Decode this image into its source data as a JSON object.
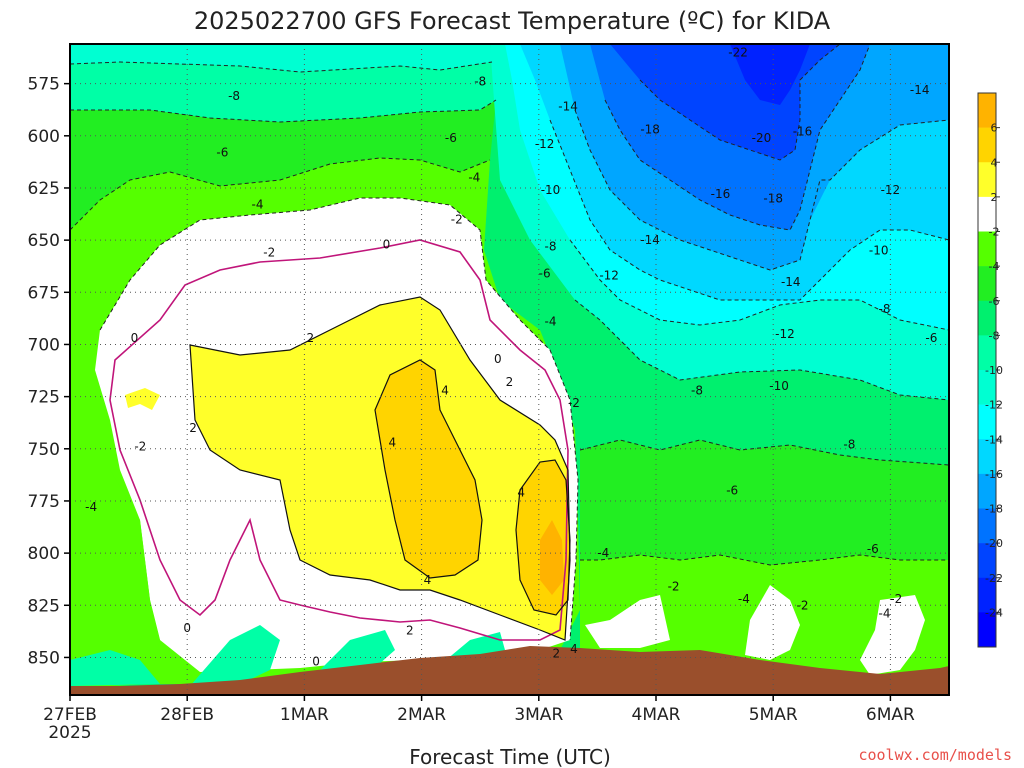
{
  "chart_data": {
    "type": "heatmap",
    "title": "2025022700 GFS Forecast Temperature (ºC) for KIDA",
    "xlabel": "Forecast Time (UTC)",
    "ylabel": "",
    "x_ticks": [
      "27FEB",
      "28FEB",
      "1MAR",
      "2MAR",
      "3MAR",
      "4MAR",
      "5MAR",
      "6MAR"
    ],
    "x_tick_sub": "2025",
    "x_range_days": [
      0,
      7.5
    ],
    "y_ticks": [
      575,
      600,
      625,
      650,
      675,
      700,
      725,
      750,
      775,
      800,
      825,
      850
    ],
    "y_range_hpa": [
      556,
      868
    ],
    "colorbar_ticks": [
      6,
      4,
      2,
      -2,
      -4,
      -6,
      -8,
      -10,
      -12,
      -14,
      -16,
      -18,
      -20,
      -22,
      -24
    ],
    "colorbar_colors": [
      "#ffb300",
      "#ffd400",
      "#ffff2a",
      "#ffffff",
      "#55ff00",
      "#22ee22",
      "#00f06e",
      "#00ffa6",
      "#00ffd2",
      "#00ffff",
      "#00d8ff",
      "#00a6ff",
      "#0073ff",
      "#0044ff",
      "#0022ff",
      "#0000ff"
    ],
    "contour_labels": [
      {
        "t": 1.4,
        "p": 581,
        "v": "-8"
      },
      {
        "t": 3.5,
        "p": 574,
        "v": "-8"
      },
      {
        "t": 1.3,
        "p": 608,
        "v": "-6"
      },
      {
        "t": 3.25,
        "p": 601,
        "v": "-6"
      },
      {
        "t": 1.6,
        "p": 633,
        "v": "-4"
      },
      {
        "t": 3.45,
        "p": 620,
        "v": "-4"
      },
      {
        "t": 1.7,
        "p": 656,
        "v": "-2"
      },
      {
        "t": 3.3,
        "p": 640,
        "v": "-2"
      },
      {
        "t": 2.7,
        "p": 652,
        "v": "0"
      },
      {
        "t": 0.55,
        "p": 697,
        "v": "0"
      },
      {
        "t": 0.6,
        "p": 749,
        "v": "-2"
      },
      {
        "t": 0.18,
        "p": 778,
        "v": "-4"
      },
      {
        "t": 1.05,
        "p": 740,
        "v": "2"
      },
      {
        "t": 2.05,
        "p": 697,
        "v": "2"
      },
      {
        "t": 3.75,
        "p": 718,
        "v": "2"
      },
      {
        "t": 3.65,
        "p": 707,
        "v": "0"
      },
      {
        "t": 3.2,
        "p": 722,
        "v": "4"
      },
      {
        "t": 2.75,
        "p": 747,
        "v": "4"
      },
      {
        "t": 3.05,
        "p": 813,
        "v": "4"
      },
      {
        "t": 3.85,
        "p": 771,
        "v": "4"
      },
      {
        "t": 2.9,
        "p": 837,
        "v": "2"
      },
      {
        "t": 1.0,
        "p": 836,
        "v": "0"
      },
      {
        "t": 2.1,
        "p": 852,
        "v": "0"
      },
      {
        "t": 4.15,
        "p": 848,
        "v": "2"
      },
      {
        "t": 4.3,
        "p": 846,
        "v": "4"
      },
      {
        "t": 4.3,
        "p": 728,
        "v": "-2"
      },
      {
        "t": 4.1,
        "p": 689,
        "v": "-4"
      },
      {
        "t": 4.05,
        "p": 666,
        "v": "-6"
      },
      {
        "t": 4.1,
        "p": 653,
        "v": "-8"
      },
      {
        "t": 4.1,
        "p": 626,
        "v": "-10"
      },
      {
        "t": 4.05,
        "p": 604,
        "v": "-12"
      },
      {
        "t": 4.25,
        "p": 586,
        "v": "-14"
      },
      {
        "t": 4.95,
        "p": 597,
        "v": "-18"
      },
      {
        "t": 5.7,
        "p": 560,
        "v": "-22"
      },
      {
        "t": 5.9,
        "p": 601,
        "v": "-20"
      },
      {
        "t": 6.25,
        "p": 598,
        "v": "-16"
      },
      {
        "t": 5.55,
        "p": 628,
        "v": "-16"
      },
      {
        "t": 6.0,
        "p": 630,
        "v": "-18"
      },
      {
        "t": 4.95,
        "p": 650,
        "v": "-14"
      },
      {
        "t": 4.6,
        "p": 667,
        "v": "-12"
      },
      {
        "t": 6.15,
        "p": 670,
        "v": "-14"
      },
      {
        "t": 6.1,
        "p": 695,
        "v": "-12"
      },
      {
        "t": 6.05,
        "p": 720,
        "v": "-10"
      },
      {
        "t": 5.35,
        "p": 722,
        "v": "-8"
      },
      {
        "t": 6.65,
        "p": 748,
        "v": "-8"
      },
      {
        "t": 5.65,
        "p": 770,
        "v": "-6"
      },
      {
        "t": 7.0,
        "p": 626,
        "v": "-12"
      },
      {
        "t": 6.9,
        "p": 655,
        "v": "-10"
      },
      {
        "t": 6.95,
        "p": 683,
        "v": "-8"
      },
      {
        "t": 7.35,
        "p": 697,
        "v": "-6"
      },
      {
        "t": 7.25,
        "p": 578,
        "v": "-14"
      },
      {
        "t": 4.55,
        "p": 800,
        "v": "-4"
      },
      {
        "t": 5.15,
        "p": 816,
        "v": "-2"
      },
      {
        "t": 5.75,
        "p": 822,
        "v": "-4"
      },
      {
        "t": 6.25,
        "p": 825,
        "v": "-2"
      },
      {
        "t": 6.85,
        "p": 798,
        "v": "-6"
      },
      {
        "t": 6.95,
        "p": 829,
        "v": "-4"
      },
      {
        "t": 7.05,
        "p": 822,
        "v": "-2"
      }
    ]
  },
  "credit": "coolwx.com/models"
}
